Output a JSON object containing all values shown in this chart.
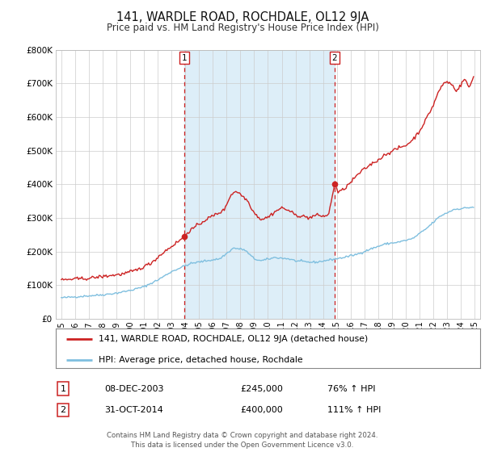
{
  "title": "141, WARDLE ROAD, ROCHDALE, OL12 9JA",
  "subtitle": "Price paid vs. HM Land Registry's House Price Index (HPI)",
  "ylim": [
    0,
    800000
  ],
  "yticks": [
    0,
    100000,
    200000,
    300000,
    400000,
    500000,
    600000,
    700000,
    800000
  ],
  "ytick_labels": [
    "£0",
    "£100K",
    "£200K",
    "£300K",
    "£400K",
    "£500K",
    "£600K",
    "£700K",
    "£800K"
  ],
  "xlim_start": 1994.6,
  "xlim_end": 2025.4,
  "xticks": [
    1995,
    1996,
    1997,
    1998,
    1999,
    2000,
    2001,
    2002,
    2003,
    2004,
    2005,
    2006,
    2007,
    2008,
    2009,
    2010,
    2011,
    2012,
    2013,
    2014,
    2015,
    2016,
    2017,
    2018,
    2019,
    2020,
    2021,
    2022,
    2023,
    2024,
    2025
  ],
  "sale1_x": 2003.93,
  "sale1_y": 245000,
  "sale2_x": 2014.83,
  "sale2_y": 400000,
  "hpi_line_color": "#7fbfdf",
  "property_line_color": "#cc2222",
  "sale_marker_color": "#cc2222",
  "shaded_region_color": "#ddeef8",
  "legend_label_property": "141, WARDLE ROAD, ROCHDALE, OL12 9JA (detached house)",
  "legend_label_hpi": "HPI: Average price, detached house, Rochdale",
  "annotation1_date": "08-DEC-2003",
  "annotation1_price": "£245,000",
  "annotation1_hpi": "76% ↑ HPI",
  "annotation2_date": "31-OCT-2014",
  "annotation2_price": "£400,000",
  "annotation2_hpi": "111% ↑ HPI",
  "footer": "Contains HM Land Registry data © Crown copyright and database right 2024.\nThis data is licensed under the Open Government Licence v3.0.",
  "background_color": "#ffffff",
  "grid_color": "#cccccc"
}
